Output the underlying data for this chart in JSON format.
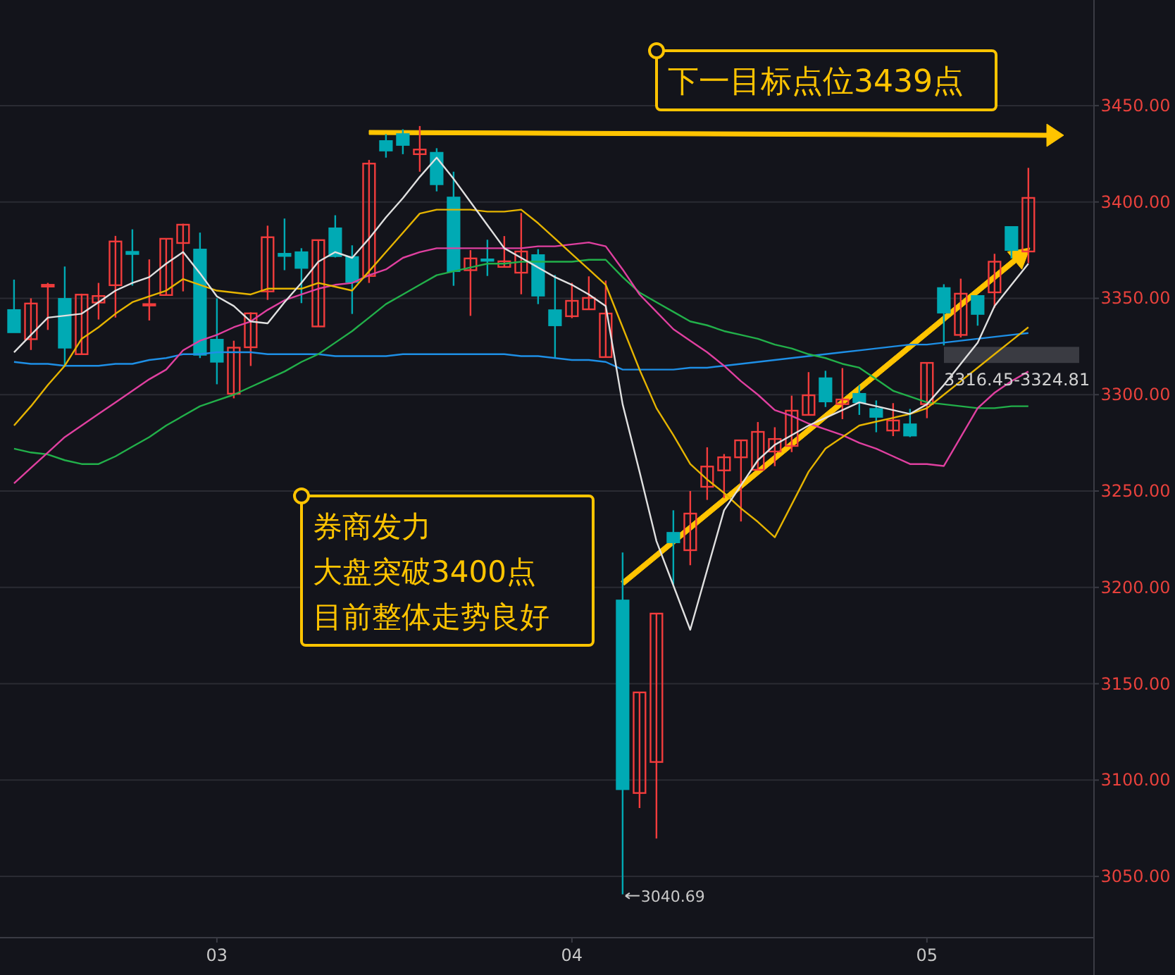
{
  "chart_data": {
    "type": "candlestick",
    "categories": [
      null,
      null,
      null,
      null,
      null,
      null,
      null,
      null,
      null,
      null,
      null,
      null,
      "03",
      null,
      null,
      null,
      null,
      null,
      null,
      null,
      null,
      null,
      null,
      null,
      null,
      null,
      null,
      null,
      null,
      null,
      null,
      null,
      null,
      "04",
      null,
      null,
      null,
      null,
      null,
      null,
      null,
      null,
      null,
      null,
      null,
      null,
      null,
      null,
      null,
      null,
      null,
      null,
      null,
      null,
      "05",
      null,
      null,
      null,
      null,
      null,
      null
    ],
    "ylim": [
      3018.6,
      3504.8
    ],
    "yticks": [
      {
        "value": 3050,
        "label": "3050.00"
      },
      {
        "value": 3100,
        "label": "3100.00"
      },
      {
        "value": 3150,
        "label": "3150.00"
      },
      {
        "value": 3200,
        "label": "3200.00"
      },
      {
        "value": 3250,
        "label": "3250.00"
      },
      {
        "value": 3300,
        "label": "3300.00"
      },
      {
        "value": 3350,
        "label": "3350.00"
      },
      {
        "value": 3400,
        "label": "3400.00"
      },
      {
        "value": 3450,
        "label": "3450.00"
      }
    ],
    "grid": "y",
    "series": [
      {
        "type": "line",
        "color": "#1e8fe6",
        "values": [
          3317,
          3316,
          3316,
          3315,
          3315,
          3315,
          3316,
          3316,
          3318,
          3319,
          3321,
          3321,
          3322,
          3322,
          3322,
          3321,
          3321,
          3321,
          3321,
          3320,
          3320,
          3320,
          3320,
          3321,
          3321,
          3321,
          3321,
          3321,
          3321,
          3321,
          3320,
          3320,
          3319,
          3318,
          3318,
          3317,
          3313,
          3313,
          3313,
          3313,
          3314,
          3314,
          3315,
          3316,
          3317,
          3318,
          3319,
          3320,
          3321,
          3322,
          3323,
          3324,
          3325,
          3326,
          3326,
          3327,
          3328,
          3329,
          3330,
          3331,
          3332
        ]
      },
      {
        "type": "line",
        "color": "#22b04a",
        "values": [
          3272,
          3270,
          3269,
          3266,
          3264,
          3264,
          3268,
          3273,
          3278,
          3284,
          3289,
          3294,
          3297,
          3300,
          3304,
          3308,
          3312,
          3317,
          3321,
          3327,
          3333,
          3340,
          3347,
          3352,
          3357,
          3362,
          3364,
          3366,
          3368,
          3368,
          3369,
          3369,
          3369,
          3369,
          3370,
          3370,
          3361,
          3353,
          3348,
          3343,
          3338,
          3336,
          3333,
          3331,
          3329,
          3326,
          3324,
          3321,
          3319,
          3316,
          3314,
          3308,
          3302,
          3299,
          3296,
          3295,
          3294,
          3293,
          3293,
          3294,
          3294
        ]
      },
      {
        "type": "line",
        "color": "#e040a0",
        "values": [
          3254,
          3262,
          3270,
          3278,
          3284,
          3290,
          3296,
          3302,
          3308,
          3313,
          3323,
          3328,
          3331,
          3335,
          3338,
          3344,
          3349,
          3352,
          3355,
          3357,
          3358,
          3362,
          3365,
          3371,
          3374,
          3376,
          3376,
          3376,
          3376,
          3376,
          3376,
          3377,
          3377,
          3378,
          3379,
          3377,
          3365,
          3352,
          3343,
          3334,
          3328,
          3322,
          3315,
          3307,
          3300,
          3292,
          3289,
          3285,
          3282,
          3279,
          3275,
          3272,
          3268,
          3264,
          3264,
          3263,
          3278,
          3293,
          3301,
          3307,
          3312
        ]
      },
      {
        "type": "line",
        "color": "#e6b400",
        "values": [
          3284,
          3294,
          3305,
          3315,
          3329,
          3335,
          3342,
          3348,
          3351,
          3354,
          3360,
          3357,
          3354,
          3353,
          3352,
          3355,
          3355,
          3355,
          3358,
          3356,
          3354,
          3364,
          3374,
          3384,
          3394,
          3396,
          3396,
          3396,
          3395,
          3395,
          3396,
          3389,
          3381,
          3373,
          3365,
          3357,
          3335,
          3313,
          3293,
          3279,
          3264,
          3256,
          3249,
          3241,
          3234,
          3226,
          3243,
          3260,
          3272,
          3278,
          3284,
          3286,
          3288,
          3290,
          3293,
          3300,
          3307,
          3314,
          3321,
          3328,
          3335
        ]
      },
      {
        "type": "line",
        "color": "#e0e0e0",
        "values": [
          3322,
          3331,
          3340,
          3341,
          3342,
          3348,
          3354,
          3358,
          3361,
          3368,
          3374,
          3363,
          3351,
          3346,
          3338,
          3337,
          3348,
          3358,
          3369,
          3374,
          3371,
          3381,
          3392,
          3402,
          3413,
          3423,
          3412,
          3400,
          3388,
          3376,
          3371,
          3366,
          3361,
          3357,
          3352,
          3346,
          3295,
          3260,
          3224,
          3201,
          3178,
          3209,
          3240,
          3253,
          3266,
          3274,
          3279,
          3284,
          3288,
          3292,
          3296,
          3294,
          3292,
          3290,
          3295,
          3305,
          3316,
          3327,
          3346,
          3357,
          3368
        ]
      },
      {
        "ohlc": [
          [
            3343.9,
            3359.7,
            3332.4,
            3332.4
          ],
          [
            3328.8,
            3350,
            3323.2,
            3347.3
          ],
          [
            3356.1,
            3358,
            3333.6,
            3357
          ],
          [
            3349.7,
            3366.5,
            3315.1,
            3324.4
          ],
          [
            3321,
            3352.4,
            3321,
            3351.9
          ],
          [
            3347.8,
            3358,
            3339,
            3351.2
          ],
          [
            3356.8,
            3382.4,
            3340,
            3379.5
          ],
          [
            3374.1,
            3385.8,
            3356.6,
            3373
          ],
          [
            3346.3,
            3370.2,
            3338.5,
            3347
          ],
          [
            3351.7,
            3381,
            3351.7,
            3380.9
          ],
          [
            3378.7,
            3388.7,
            3353.6,
            3388.2
          ],
          [
            3375.3,
            3384.1,
            3319,
            3320.7
          ],
          [
            3328.5,
            3350,
            3305.4,
            3317.1
          ],
          [
            3300.5,
            3328,
            3298.1,
            3324.4
          ],
          [
            3324.6,
            3342.7,
            3314.9,
            3342.2
          ],
          [
            3353.6,
            3387.7,
            3349.2,
            3381.7
          ],
          [
            3373.1,
            3391.4,
            3364.6,
            3372
          ],
          [
            3373.9,
            3376,
            3347.5,
            3365.8
          ],
          [
            3335.4,
            3380.2,
            3335.4,
            3380.2
          ],
          [
            3386.3,
            3393.1,
            3371.2,
            3371.9
          ],
          [
            3371.4,
            3377.5,
            3341.9,
            3358.5
          ],
          [
            3361.6,
            3421.8,
            3358,
            3419.9
          ],
          [
            3431.6,
            3435.2,
            3423,
            3426.7
          ],
          [
            3435.2,
            3437.7,
            3424.8,
            3429.6
          ],
          [
            3424.8,
            3439.4,
            3415.7,
            3427.2
          ],
          [
            3425.5,
            3427.9,
            3405.5,
            3409.2
          ],
          [
            3402.3,
            3415.7,
            3356.5,
            3364.1
          ],
          [
            3364.6,
            3375,
            3340.9,
            3370.7
          ],
          [
            3370.2,
            3380.4,
            3361.6,
            3369.5
          ],
          [
            3366.3,
            3382.3,
            3366,
            3369.2
          ],
          [
            3363.3,
            3394.3,
            3352.1,
            3374.3
          ],
          [
            3372.4,
            3375.5,
            3347,
            3351.4
          ],
          [
            3343.8,
            3362.1,
            3319,
            3336
          ],
          [
            3340.7,
            3358,
            3339.7,
            3348.7
          ],
          [
            3344.3,
            3361.4,
            3344.3,
            3350.2
          ],
          [
            3319.5,
            3359.2,
            3319.5,
            3342.1
          ],
          [
            3193.2,
            3218.1,
            3040.69,
            3095.3
          ],
          [
            3093.3,
            3145.5,
            3085.5,
            3145.5
          ],
          [
            3109.4,
            3186.4,
            3069.7,
            3186.4
          ],
          [
            3228.3,
            3240,
            3201.5,
            3223.4
          ],
          [
            3219.3,
            3250,
            3211.5,
            3238.3
          ],
          [
            3252.2,
            3272.7,
            3245.4,
            3262.7
          ],
          [
            3260.7,
            3269.2,
            3246.3,
            3267.5
          ],
          [
            3267.5,
            3276.3,
            3234.2,
            3276.3
          ],
          [
            3261,
            3285.8,
            3261,
            3280.7
          ],
          [
            3270.5,
            3283.1,
            3262.9,
            3277
          ],
          [
            3273.4,
            3299.5,
            3270.2,
            3291.7
          ],
          [
            3289.5,
            3311.7,
            3289.5,
            3299.7
          ],
          [
            3308.5,
            3312.4,
            3293.6,
            3296.5
          ],
          [
            3295.1,
            3313.8,
            3287.3,
            3297.5
          ],
          [
            3300.4,
            3304.8,
            3289.5,
            3296.1
          ],
          [
            3292.6,
            3297,
            3280.5,
            3288.5
          ],
          [
            3281.4,
            3295.6,
            3278.5,
            3286.6
          ],
          [
            3284.6,
            3292.6,
            3278,
            3278.8
          ],
          [
            3295.1,
            3316.5,
            3287.8,
            3316.5
          ],
          [
            3355.3,
            3357.3,
            3325.6,
            3342.6
          ],
          [
            3331,
            3360.2,
            3329.7,
            3352.4
          ],
          [
            3351.2,
            3351.2,
            3335.8,
            3341.9
          ],
          [
            3353.1,
            3373.1,
            3345.1,
            3369
          ],
          [
            3387,
            3387,
            3370.7,
            3375.1
          ],
          [
            3374.3,
            3417.7,
            3368.2,
            3402.1
          ]
        ],
        "colors": [
          "#00aab4",
          "#f23c3c",
          "#f23c3c",
          "#00aab4",
          "#f23c3c",
          "#f23c3c",
          "#f23c3c",
          "#00aab4",
          "#f23c3c",
          "#f23c3c",
          "#f23c3c",
          "#00aab4",
          "#00aab4",
          "#f23c3c",
          "#f23c3c",
          "#f23c3c",
          "#00aab4",
          "#00aab4",
          "#f23c3c",
          "#00aab4",
          "#00aab4",
          "#f23c3c",
          "#00aab4",
          "#00aab4",
          "#f23c3c",
          "#00aab4",
          "#00aab4",
          "#f23c3c",
          "#00aab4",
          "#f23c3c",
          "#f23c3c",
          "#00aab4",
          "#00aab4",
          "#f23c3c",
          "#f23c3c",
          "#f23c3c",
          "#00aab4",
          "#f23c3c",
          "#f23c3c",
          "#00aab4",
          "#f23c3c",
          "#f23c3c",
          "#f23c3c",
          "#f23c3c",
          "#f23c3c",
          "#f23c3c",
          "#f23c3c",
          "#f23c3c",
          "#00aab4",
          "#f23c3c",
          "#00aab4",
          "#00aab4",
          "#f23c3c",
          "#00aab4",
          "#f23c3c",
          "#00aab4",
          "#f23c3c",
          "#00aab4",
          "#f23c3c",
          "#00aab4",
          "#f23c3c"
        ]
      }
    ],
    "bands": [
      {
        "axis": "y",
        "from": 3316.45,
        "to": 3324.81,
        "label": "3316.45-3324.81",
        "color": "#3a3b42"
      }
    ],
    "annotations": [
      "3040.69",
      "下一目标点位3439点",
      "券商发力",
      "大盘突破3400点",
      "目前整体走势良好"
    ]
  }
}
